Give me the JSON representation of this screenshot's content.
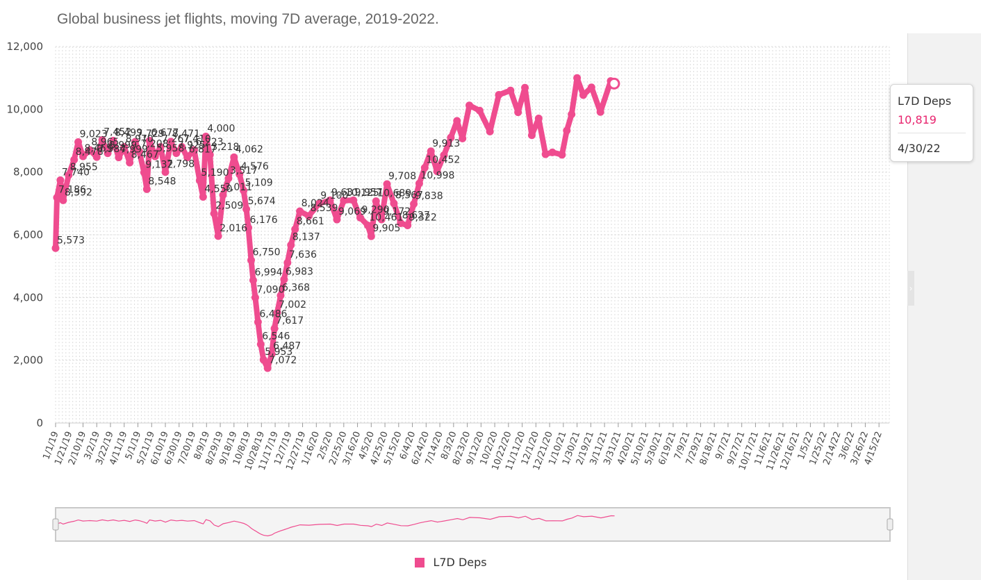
{
  "colors": {
    "series": "#ef4c8f",
    "grid": "#dcdcdc",
    "axis": "#cccccc",
    "navigator_bg": "#f4f4f4",
    "side_panel": "#f2f2f2"
  },
  "chart_data": {
    "type": "line",
    "title": "Global business jet flights, moving 7D average, 2019-2022.",
    "xlabel": "",
    "ylabel": "",
    "ylim": [
      0,
      12000
    ],
    "y_ticks": [
      "0",
      "2,000",
      "4,000",
      "6,000",
      "8,000",
      "10,000",
      "12,000"
    ],
    "x_ticks": [
      "1/1/19",
      "1/21/19",
      "2/10/19",
      "3/2/19",
      "3/22/19",
      "4/11/19",
      "5/1/19",
      "5/21/19",
      "6/10/19",
      "6/30/19",
      "7/20/19",
      "8/9/19",
      "8/29/19",
      "9/18/19",
      "10/8/19",
      "10/28/19",
      "11/17/19",
      "12/7/19",
      "12/27/19",
      "1/16/20",
      "2/5/20",
      "2/25/20",
      "3/16/20",
      "4/5/20",
      "4/25/20",
      "5/15/20",
      "6/4/20",
      "6/24/20",
      "7/14/20",
      "8/3/20",
      "8/23/20",
      "9/12/20",
      "10/2/20",
      "10/22/20",
      "11/11/20",
      "12/1/20",
      "12/21/20",
      "1/10/21",
      "1/30/21",
      "2/19/21",
      "3/11/21",
      "3/31/21",
      "4/20/21",
      "5/10/21",
      "5/30/21",
      "6/19/21",
      "7/9/21",
      "7/29/21",
      "8/18/21",
      "9/7/21",
      "9/27/21",
      "10/17/21",
      "11/6/21",
      "11/26/21",
      "12/16/21",
      "1/5/22",
      "1/25/22",
      "2/14/22",
      "3/6/22",
      "3/26/22",
      "4/15/22"
    ],
    "grid": true,
    "legend": "bottom-center",
    "series": [
      {
        "name": "L7D Deps",
        "points": [
          [
            "1/1/19",
            5573
          ],
          [
            "1/3/19",
            7186
          ],
          [
            "1/8/19",
            7740
          ],
          [
            "1/12/19",
            7100
          ],
          [
            "1/20/19",
            7900
          ],
          [
            "1/28/19",
            8392
          ],
          [
            "2/3/19",
            8955
          ],
          [
            "2/10/19",
            8500
          ],
          [
            "2/20/19",
            8700
          ],
          [
            "3/2/19",
            8478
          ],
          [
            "3/10/19",
            9023
          ],
          [
            "3/18/19",
            8600
          ],
          [
            "3/26/19",
            9000
          ],
          [
            "4/3/19",
            8465
          ],
          [
            "4/11/19",
            8800
          ],
          [
            "4/19/19",
            8300
          ],
          [
            "4/27/19",
            8965
          ],
          [
            "5/3/19",
            8650
          ],
          [
            "5/10/19",
            7984
          ],
          [
            "5/14/19",
            7452
          ],
          [
            "5/18/19",
            8999
          ],
          [
            "5/26/19",
            8499
          ],
          [
            "6/3/19",
            8800
          ],
          [
            "6/10/19",
            7999
          ],
          [
            "6/18/19",
            8970
          ],
          [
            "6/26/19",
            8600
          ],
          [
            "7/4/19",
            8800
          ],
          [
            "7/12/19",
            8467
          ],
          [
            "7/22/19",
            8700
          ],
          [
            "7/30/19",
            7729
          ],
          [
            "8/4/19",
            7208
          ],
          [
            "8/8/19",
            9132
          ],
          [
            "8/14/19",
            8548
          ],
          [
            "8/20/19",
            6677
          ],
          [
            "8/26/19",
            5958
          ],
          [
            "9/2/19",
            7267
          ],
          [
            "9/10/19",
            7798
          ],
          [
            "9/18/19",
            8471
          ],
          [
            "9/26/19",
            7925
          ],
          [
            "10/2/19",
            7410
          ],
          [
            "10/6/19",
            6817
          ],
          [
            "10/9/19",
            6223
          ],
          [
            "10/13/19",
            5190
          ],
          [
            "10/16/19",
            4550
          ],
          [
            "10/19/19",
            4000
          ],
          [
            "10/23/19",
            3218
          ],
          [
            "10/27/19",
            2509
          ],
          [
            "10/31/19",
            2016
          ],
          [
            "11/6/19",
            1750
          ],
          [
            "11/12/19",
            2200
          ],
          [
            "11/16/19",
            3011
          ],
          [
            "11/20/19",
            3517
          ],
          [
            "11/25/19",
            4062
          ],
          [
            "11/30/19",
            4576
          ],
          [
            "12/5/19",
            5109
          ],
          [
            "12/10/19",
            5674
          ],
          [
            "12/16/19",
            6176
          ],
          [
            "12/23/19",
            6750
          ],
          [
            "1/5/20",
            6600
          ],
          [
            "1/20/20",
            6994
          ],
          [
            "2/5/20",
            7100
          ],
          [
            "2/15/20",
            6486
          ],
          [
            "2/25/20",
            7090
          ],
          [
            "3/10/20",
            7100
          ],
          [
            "3/20/20",
            6546
          ],
          [
            "3/31/20",
            6300
          ],
          [
            "4/5/20",
            5953
          ],
          [
            "4/12/20",
            7072
          ],
          [
            "4/20/20",
            6487
          ],
          [
            "4/28/20",
            7617
          ],
          [
            "5/8/20",
            7002
          ],
          [
            "5/18/20",
            6368
          ],
          [
            "5/28/20",
            6300
          ],
          [
            "6/6/20",
            6983
          ],
          [
            "6/14/20",
            7636
          ],
          [
            "6/22/20",
            8137
          ],
          [
            "7/1/20",
            8661
          ],
          [
            "7/10/20",
            8024
          ],
          [
            "7/20/20",
            8539
          ],
          [
            "7/30/20",
            9100
          ],
          [
            "8/8/20",
            9631
          ],
          [
            "8/16/20",
            9069
          ],
          [
            "8/26/20",
            10125
          ],
          [
            "9/10/20",
            9957
          ],
          [
            "9/25/20",
            9290
          ],
          [
            "10/8/20",
            10461
          ],
          [
            "10/25/20",
            10600
          ],
          [
            "11/5/20",
            9905
          ],
          [
            "11/15/20",
            10689
          ],
          [
            "11/25/20",
            9172
          ],
          [
            "12/5/20",
            9708
          ],
          [
            "12/15/20",
            8567
          ],
          [
            "12/25/20",
            8627
          ],
          [
            "1/8/21",
            8550
          ],
          [
            "1/15/21",
            9322
          ],
          [
            "1/22/21",
            9838
          ],
          [
            "1/30/21",
            10998
          ],
          [
            "2/8/21",
            10452
          ],
          [
            "2/20/21",
            10700
          ],
          [
            "3/5/21",
            9913
          ],
          [
            "3/20/21",
            10900
          ],
          [
            "3/25/21",
            10819
          ]
        ]
      }
    ],
    "data_labels": [
      "5,573",
      "7,186",
      "7,740",
      "8,392",
      "8,955",
      "8,478",
      "9,023",
      "8,465",
      "8,965",
      "7,984",
      "7,452",
      "8,999",
      "8,499",
      "7,999",
      "8,970",
      "8,467",
      "7,729",
      "7,208",
      "9,132",
      "8,548",
      "6,677",
      "5,958",
      "7,267",
      "7,798",
      "8,471",
      "7,925",
      "7,410",
      "6,817",
      "6,223",
      "5,190",
      "4,550",
      "4,000",
      "3,218",
      "2,509",
      "2,016",
      "3,011",
      "3,517",
      "4,062",
      "4,576",
      "5,109",
      "5,674",
      "6,176",
      "6,750",
      "6,994",
      "7,090",
      "6,486",
      "6,546",
      "5,953",
      "7,072",
      "6,487",
      "7,617",
      "7,002",
      "6,368",
      "6,983",
      "7,636",
      "8,137",
      "8,661",
      "8,024",
      "8,539",
      "9,100",
      "9,631",
      "9,069",
      "10,125",
      "9,957",
      "9,290",
      "10,461",
      "9,905",
      "10,689",
      "9,172",
      "9,708",
      "8,567",
      "8,627",
      "9,322",
      "9,838",
      "10,998",
      "10,452",
      "9,913"
    ]
  },
  "tooltip": {
    "series_name": "L7D Deps",
    "value": "10,819",
    "date": "4/30/22",
    "value_color": "#e8246e"
  },
  "legend": {
    "label": "L7D Deps"
  }
}
